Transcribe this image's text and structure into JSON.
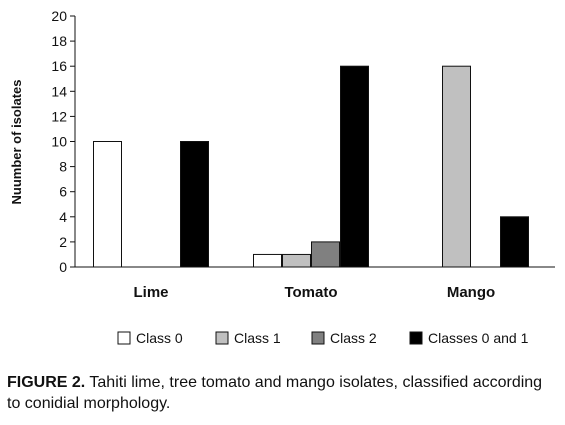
{
  "chart_data": {
    "type": "bar",
    "categories": [
      "Lime",
      "Tomato",
      "Mango"
    ],
    "series": [
      {
        "name": "Class 0",
        "values": [
          10,
          1,
          0
        ],
        "color": "#ffffff"
      },
      {
        "name": "Class 1",
        "values": [
          0,
          1,
          16
        ],
        "color": "#c0c0c0"
      },
      {
        "name": "Class 2",
        "values": [
          0,
          2,
          0
        ],
        "color": "#808080"
      },
      {
        "name": "Classes 0 and 1",
        "values": [
          10,
          16,
          4
        ],
        "color": "#000000"
      }
    ],
    "ylabel": "Nuumber of isolates",
    "ylim": [
      0,
      20
    ],
    "yticks": [
      0,
      2,
      4,
      6,
      8,
      10,
      12,
      14,
      16,
      18,
      20
    ],
    "grid": false,
    "legend_position": "bottom"
  },
  "caption": {
    "label": "FIGURE 2.",
    "text": " Tahiti lime, tree tomato and mango isolates, classified according to conidial morphology."
  }
}
